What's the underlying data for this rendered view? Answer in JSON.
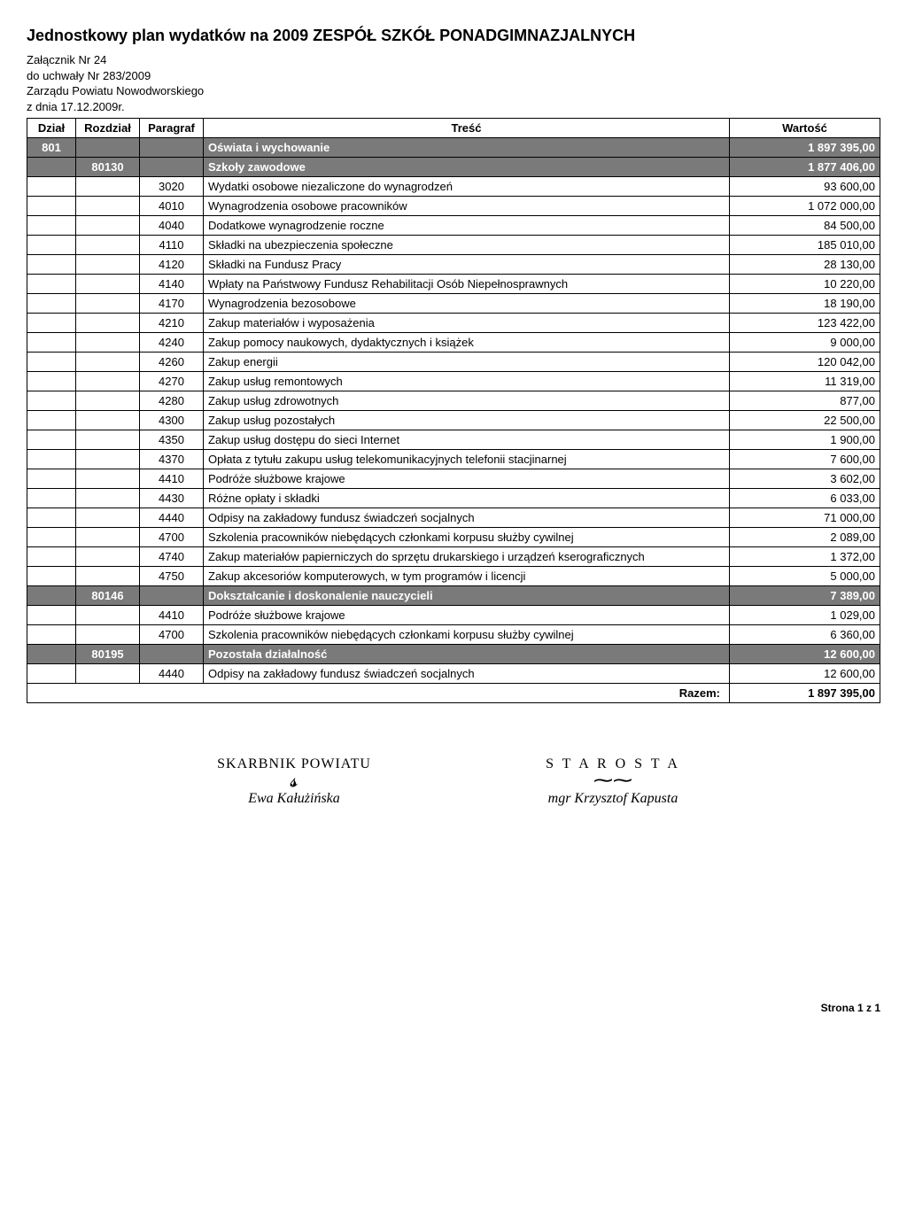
{
  "title": "Jednostkowy plan wydatków na 2009 ZESPÓŁ SZKÓŁ PONADGIMNAZJALNYCH",
  "meta": {
    "zalacznik": "Załącznik Nr  24",
    "uchwala": "do uchwały Nr 283/2009",
    "zarzad": "Zarządu Powiatu Nowodworskiego",
    "dnia": "z dnia  17.12.2009r."
  },
  "columns": {
    "dzial": "Dział",
    "rozdzial": "Rozdział",
    "paragraf": "Paragraf",
    "tresc": "Treść",
    "wartosc": "Wartość"
  },
  "rows": [
    {
      "shaded": true,
      "dzial": "801",
      "rozdzial": "",
      "paragraf": "",
      "tresc": "Oświata i wychowanie",
      "wartosc": "1 897 395,00"
    },
    {
      "shaded": true,
      "dzial": "",
      "rozdzial": "80130",
      "paragraf": "",
      "tresc": "Szkoły zawodowe",
      "wartosc": "1 877 406,00"
    },
    {
      "shaded": false,
      "dzial": "",
      "rozdzial": "",
      "paragraf": "3020",
      "tresc": "Wydatki osobowe niezaliczone do wynagrodzeń",
      "wartosc": "93 600,00"
    },
    {
      "shaded": false,
      "dzial": "",
      "rozdzial": "",
      "paragraf": "4010",
      "tresc": "Wynagrodzenia osobowe pracowników",
      "wartosc": "1 072 000,00"
    },
    {
      "shaded": false,
      "dzial": "",
      "rozdzial": "",
      "paragraf": "4040",
      "tresc": "Dodatkowe wynagrodzenie roczne",
      "wartosc": "84 500,00"
    },
    {
      "shaded": false,
      "dzial": "",
      "rozdzial": "",
      "paragraf": "4110",
      "tresc": "Składki na ubezpieczenia społeczne",
      "wartosc": "185 010,00"
    },
    {
      "shaded": false,
      "dzial": "",
      "rozdzial": "",
      "paragraf": "4120",
      "tresc": "Składki na Fundusz Pracy",
      "wartosc": "28 130,00"
    },
    {
      "shaded": false,
      "dzial": "",
      "rozdzial": "",
      "paragraf": "4140",
      "tresc": "Wpłaty na Państwowy Fundusz Rehabilitacji Osób Niepełnosprawnych",
      "wartosc": "10 220,00"
    },
    {
      "shaded": false,
      "dzial": "",
      "rozdzial": "",
      "paragraf": "4170",
      "tresc": "Wynagrodzenia bezosobowe",
      "wartosc": "18 190,00"
    },
    {
      "shaded": false,
      "dzial": "",
      "rozdzial": "",
      "paragraf": "4210",
      "tresc": "Zakup materiałów i wyposażenia",
      "wartosc": "123 422,00"
    },
    {
      "shaded": false,
      "dzial": "",
      "rozdzial": "",
      "paragraf": "4240",
      "tresc": "Zakup pomocy naukowych, dydaktycznych i książek",
      "wartosc": "9 000,00"
    },
    {
      "shaded": false,
      "dzial": "",
      "rozdzial": "",
      "paragraf": "4260",
      "tresc": "Zakup energii",
      "wartosc": "120 042,00"
    },
    {
      "shaded": false,
      "dzial": "",
      "rozdzial": "",
      "paragraf": "4270",
      "tresc": "Zakup usług remontowych",
      "wartosc": "11 319,00"
    },
    {
      "shaded": false,
      "dzial": "",
      "rozdzial": "",
      "paragraf": "4280",
      "tresc": "Zakup usług zdrowotnych",
      "wartosc": "877,00"
    },
    {
      "shaded": false,
      "dzial": "",
      "rozdzial": "",
      "paragraf": "4300",
      "tresc": "Zakup usług pozostałych",
      "wartosc": "22 500,00"
    },
    {
      "shaded": false,
      "dzial": "",
      "rozdzial": "",
      "paragraf": "4350",
      "tresc": "Zakup usług dostępu do sieci Internet",
      "wartosc": "1 900,00"
    },
    {
      "shaded": false,
      "dzial": "",
      "rozdzial": "",
      "paragraf": "4370",
      "tresc": "Opłata z tytułu zakupu usług telekomunikacyjnych telefonii stacjinarnej",
      "wartosc": "7 600,00"
    },
    {
      "shaded": false,
      "dzial": "",
      "rozdzial": "",
      "paragraf": "4410",
      "tresc": "Podróże służbowe krajowe",
      "wartosc": "3 602,00"
    },
    {
      "shaded": false,
      "dzial": "",
      "rozdzial": "",
      "paragraf": "4430",
      "tresc": "Różne opłaty i składki",
      "wartosc": "6 033,00"
    },
    {
      "shaded": false,
      "dzial": "",
      "rozdzial": "",
      "paragraf": "4440",
      "tresc": "Odpisy na zakładowy fundusz świadczeń socjalnych",
      "wartosc": "71 000,00"
    },
    {
      "shaded": false,
      "dzial": "",
      "rozdzial": "",
      "paragraf": "4700",
      "tresc": "Szkolenia pracowników niebędących członkami korpusu służby cywilnej",
      "wartosc": "2 089,00"
    },
    {
      "shaded": false,
      "dzial": "",
      "rozdzial": "",
      "paragraf": "4740",
      "tresc": "Zakup materiałów papierniczych do sprzętu drukarskiego i urządzeń kserograficznych",
      "wartosc": "1 372,00"
    },
    {
      "shaded": false,
      "dzial": "",
      "rozdzial": "",
      "paragraf": "4750",
      "tresc": "Zakup akcesoriów komputerowych, w tym programów i licencji",
      "wartosc": "5 000,00"
    },
    {
      "shaded": true,
      "dzial": "",
      "rozdzial": "80146",
      "paragraf": "",
      "tresc": "Dokształcanie i doskonalenie nauczycieli",
      "wartosc": "7 389,00"
    },
    {
      "shaded": false,
      "dzial": "",
      "rozdzial": "",
      "paragraf": "4410",
      "tresc": "Podróże służbowe krajowe",
      "wartosc": "1 029,00"
    },
    {
      "shaded": false,
      "dzial": "",
      "rozdzial": "",
      "paragraf": "4700",
      "tresc": "Szkolenia pracowników niebędących członkami korpusu służby cywilnej",
      "wartosc": "6 360,00"
    },
    {
      "shaded": true,
      "dzial": "",
      "rozdzial": "80195",
      "paragraf": "",
      "tresc": "Pozostała działalność",
      "wartosc": "12 600,00"
    },
    {
      "shaded": false,
      "dzial": "",
      "rozdzial": "",
      "paragraf": "4440",
      "tresc": "Odpisy na zakładowy fundusz świadczeń socjalnych",
      "wartosc": "12 600,00"
    }
  ],
  "total": {
    "label": "Razem:",
    "value": "1 897 395,00"
  },
  "signatures": {
    "left": {
      "role": "SKARBNIK POWIATU",
      "name": "Ewa Kałużińska"
    },
    "right": {
      "role": "S T A R O S T A",
      "name": "mgr Krzysztof Kapusta"
    }
  },
  "footer": "Strona 1 z 1",
  "style": {
    "shaded_bg": "#7a7a7a",
    "shaded_fg": "#ffffff",
    "border_color": "#000000",
    "font_size_body": 13,
    "font_size_title": 18
  }
}
